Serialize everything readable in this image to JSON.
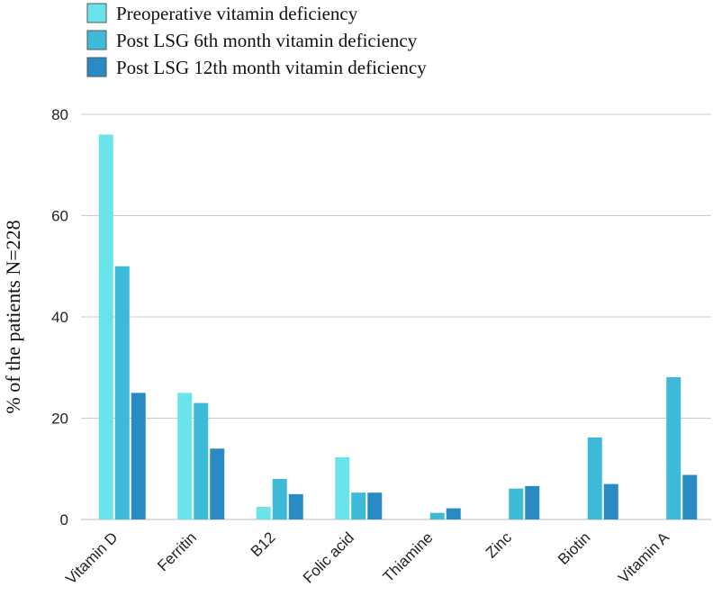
{
  "chart_data": {
    "type": "bar",
    "title": "",
    "xlabel": "",
    "ylabel": "% of the patients N=228",
    "ylim": [
      0,
      80
    ],
    "yticks": [
      0,
      20,
      40,
      60,
      80
    ],
    "grid": true,
    "legend_position": "top-left",
    "categories": [
      "Vitamin D",
      "Ferritin",
      "B12",
      "Folic acid",
      "Thiamine",
      "Zinc",
      "Biotin",
      "Vitamin A"
    ],
    "series": [
      {
        "name": "Preoperative vitamin deficiency",
        "color": "#6ae3ea",
        "values": [
          76,
          25,
          2.5,
          12.3,
          0,
          0,
          0,
          0
        ]
      },
      {
        "name": "Post LSG 6th month vitamin deficiency",
        "color": "#3dbad8",
        "values": [
          50,
          23,
          8,
          5.3,
          1.3,
          6.1,
          16.2,
          28.1
        ]
      },
      {
        "name": "Post LSG 12th month vitamin deficiency",
        "color": "#2a8bc4",
        "values": [
          25,
          14,
          5,
          5.3,
          2.2,
          6.6,
          7,
          8.8
        ]
      }
    ]
  }
}
